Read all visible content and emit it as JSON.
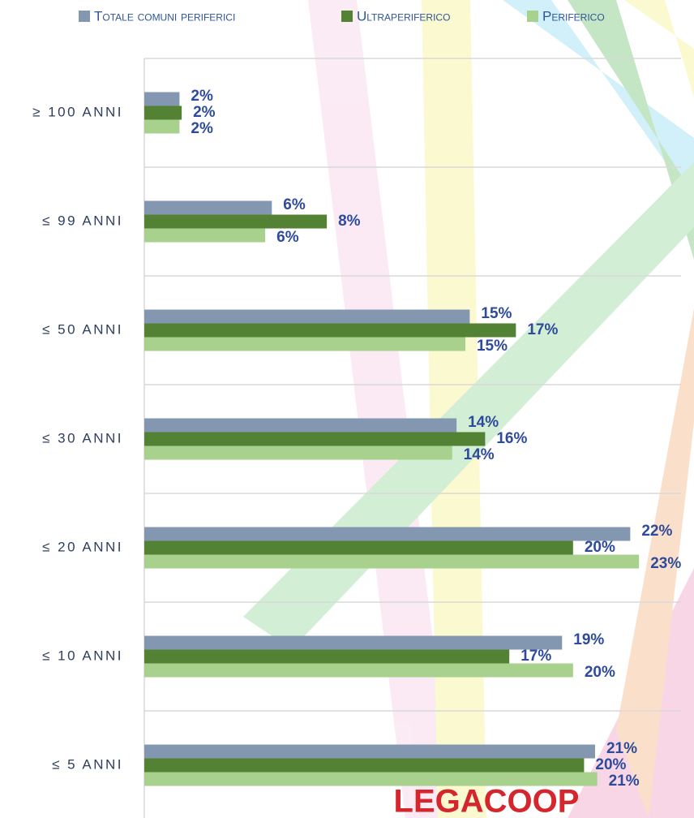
{
  "chart_data": {
    "type": "bar",
    "orientation": "horizontal",
    "categories": [
      "≥ 100 ANNI",
      "≤ 99 ANNI",
      "≤ 50 ANNI",
      "≤ 30 ANNI",
      "≤ 20 ANNI",
      "≤ 10 ANNI",
      "≤ 5 ANNI"
    ],
    "series": [
      {
        "name": "Totale comuni periferici",
        "color": "#8497b0",
        "values": [
          1.6,
          5.8,
          14.8,
          14.2,
          22.1,
          19.0,
          20.5
        ],
        "value_labels": [
          "2%",
          "6%",
          "15%",
          "14%",
          "22%",
          "19%",
          "21%"
        ]
      },
      {
        "name": "Ultraperiferico",
        "color": "#548235",
        "values": [
          1.7,
          8.3,
          16.9,
          15.5,
          19.5,
          16.6,
          20.0
        ],
        "value_labels": [
          "2%",
          "8%",
          "17%",
          "16%",
          "20%",
          "17%",
          "20%"
        ]
      },
      {
        "name": "Periferico",
        "color": "#a9d18e",
        "values": [
          1.6,
          5.5,
          14.6,
          14.0,
          22.5,
          19.5,
          20.6
        ],
        "value_labels": [
          "2%",
          "6%",
          "15%",
          "14%",
          "23%",
          "20%",
          "21%"
        ]
      }
    ],
    "xlim": [
      0,
      25
    ],
    "grid": true,
    "legend": "top",
    "logo": "LEGACOOP"
  }
}
